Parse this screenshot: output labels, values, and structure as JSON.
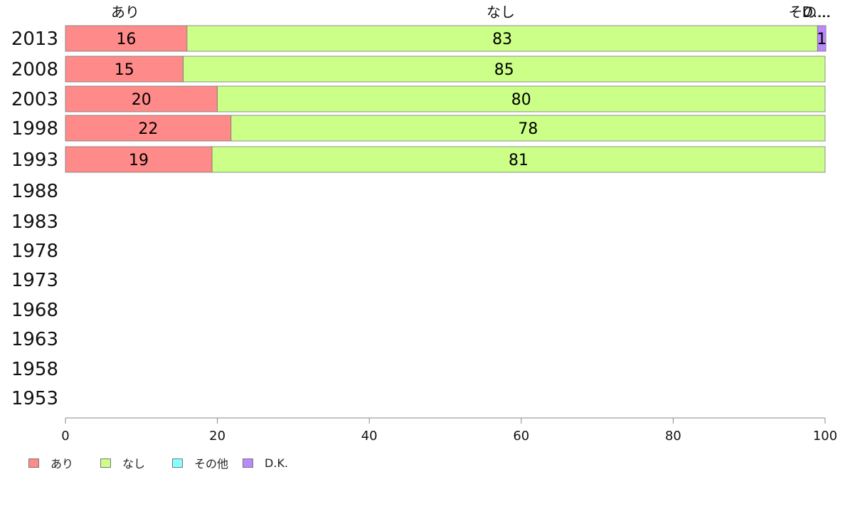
{
  "chart_data": {
    "type": "bar",
    "orientation": "horizontal",
    "stacked": true,
    "categories": [
      "2013",
      "2008",
      "2003",
      "1998",
      "1993",
      "1988",
      "1983",
      "1978",
      "1973",
      "1968",
      "1963",
      "1958",
      "1953"
    ],
    "series": [
      {
        "name": "あり",
        "color": "#ff8a8a",
        "values": [
          16,
          15.5,
          20,
          21.8,
          19.3,
          null,
          null,
          null,
          null,
          null,
          null,
          null,
          null
        ],
        "labels": [
          "16",
          "15",
          "20",
          "22",
          "19"
        ]
      },
      {
        "name": "なし",
        "color": "#ccff88",
        "values": [
          83,
          84.5,
          80,
          78.2,
          80.7,
          null,
          null,
          null,
          null,
          null,
          null,
          null,
          null
        ],
        "labels": [
          "83",
          "85",
          "80",
          "78",
          "81"
        ]
      },
      {
        "name": "その他",
        "color": "#88ffff",
        "values": [
          0,
          0,
          0,
          0,
          0,
          null,
          null,
          null,
          null,
          null,
          null,
          null,
          null
        ],
        "labels": [
          "",
          "",
          "",
          "",
          ""
        ]
      },
      {
        "name": "D.K.",
        "color": "#bb88ff",
        "values": [
          1.1,
          0,
          0,
          0,
          0,
          null,
          null,
          null,
          null,
          null,
          null,
          null,
          null
        ],
        "labels": [
          "1",
          "",
          "",
          "",
          ""
        ]
      }
    ],
    "top_labels": [
      "あり",
      "なし",
      "その...",
      "D...."
    ],
    "xlim": [
      0,
      100
    ],
    "xticks": [
      "0",
      "20",
      "40",
      "60",
      "80",
      "100"
    ],
    "grid": false,
    "legend_position": "bottom-left"
  }
}
